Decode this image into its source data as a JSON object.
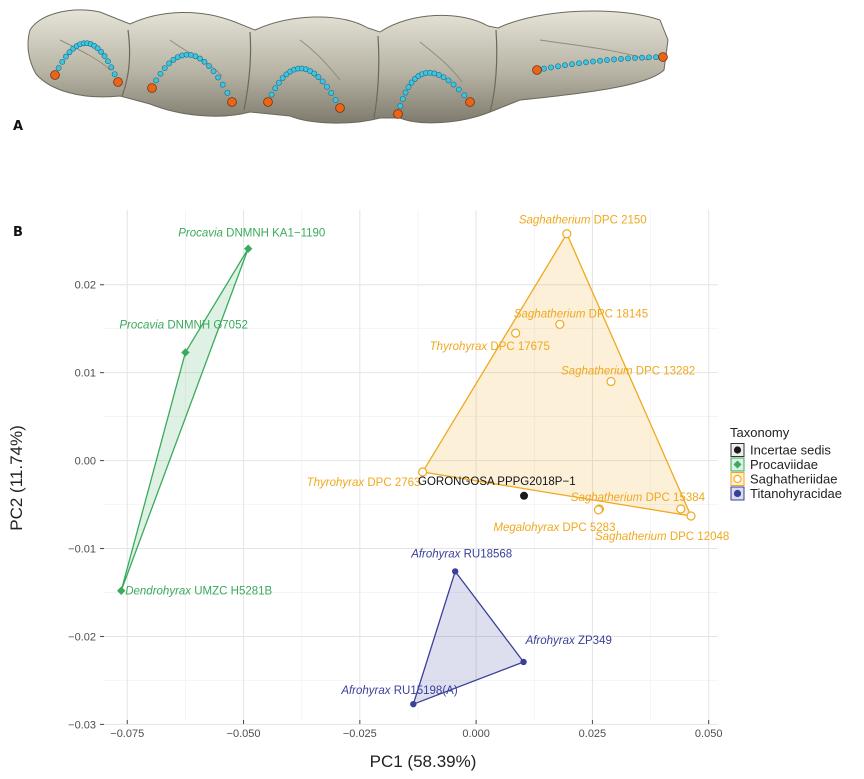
{
  "panel_a": {
    "letter": "A"
  },
  "panel_b": {
    "letter": "B"
  },
  "chart_data": {
    "type": "scatter",
    "xlabel": "PC1 (58.39%)",
    "ylabel": "PC2 (11.74%)",
    "xlim": [
      -0.08,
      0.052
    ],
    "ylim": [
      -0.0295,
      0.0285
    ],
    "xticks": [
      -0.075,
      -0.05,
      -0.025,
      0.0,
      0.025,
      0.05
    ],
    "xtick_labels": [
      "−0.075",
      "−0.050",
      "−0.025",
      "0.000",
      "0.025",
      "0.050"
    ],
    "yticks": [
      -0.03,
      -0.02,
      -0.01,
      0.0,
      0.01,
      0.02
    ],
    "ytick_labels": [
      "−0.03",
      "−0.02",
      "−0.01",
      "0.00",
      "0.01",
      "0.02"
    ],
    "grid": true,
    "legend": {
      "title": "Taxonomy",
      "placement": "right",
      "entries": [
        "Incertae sedis",
        "Procaviidae",
        "Saghatheriidae",
        "Titanohyracidae"
      ]
    },
    "colors": {
      "Incertae sedis": "#1a1a1a",
      "Procaviidae": "#3aaa5c",
      "Saghatheriidae": "#f0a81e",
      "Titanohyracidae": "#3a3f9a"
    },
    "series": [
      {
        "name": "Procaviidae",
        "marker": "diamond",
        "hull": [
          0,
          1,
          2
        ],
        "points": [
          {
            "x": -0.049,
            "y": 0.0241,
            "genus": "Procavia",
            "specimen": "DNMNH KA1−1190"
          },
          {
            "x": -0.0625,
            "y": 0.0123,
            "genus": "Procavia",
            "specimen": "DNMNH G7052"
          },
          {
            "x": -0.0763,
            "y": -0.0148,
            "genus": "Dendrohyrax",
            "specimen": "UMZC H5281B"
          }
        ]
      },
      {
        "name": "Saghatheriidae",
        "marker": "open-circle",
        "hull": [
          0,
          1,
          8
        ],
        "points": [
          {
            "x": 0.0195,
            "y": 0.0258,
            "genus": "Saghatherium",
            "specimen": "DPC 2150"
          },
          {
            "x": -0.0115,
            "y": -0.0013,
            "genus": "Thyrohyrax",
            "specimen": "DPC 2763"
          },
          {
            "x": 0.018,
            "y": 0.0155,
            "genus": "Saghatherium",
            "specimen": "DPC 18145"
          },
          {
            "x": 0.0085,
            "y": 0.0145,
            "genus": "Thyrohyrax",
            "specimen": "DPC 17675"
          },
          {
            "x": 0.029,
            "y": 0.009,
            "genus": "Saghatherium",
            "specimen": "DPC 13282"
          },
          {
            "x": 0.0265,
            "y": -0.0055,
            "genus": "Megalohyrax",
            "specimen": "DPC 5283"
          },
          {
            "x": 0.044,
            "y": -0.0055,
            "genus": "Saghatherium",
            "specimen": "DPC 15384"
          },
          {
            "x": 0.0263,
            "y": -0.0056,
            "genus": "",
            "specimen": ""
          },
          {
            "x": 0.0462,
            "y": -0.0063,
            "genus": "Saghatherium",
            "specimen": "DPC 12048"
          }
        ]
      },
      {
        "name": "Titanohyracidae",
        "marker": "circle",
        "hull": [
          0,
          1,
          2
        ],
        "points": [
          {
            "x": -0.0045,
            "y": -0.0126,
            "genus": "Afrohyrax",
            "specimen": "RU18568"
          },
          {
            "x": 0.0102,
            "y": -0.0229,
            "genus": "Afrohyrax",
            "specimen": "ZP349"
          },
          {
            "x": -0.0135,
            "y": -0.0277,
            "genus": "Afrohyrax",
            "specimen": "RU15198(A)"
          }
        ]
      },
      {
        "name": "Incertae sedis",
        "marker": "circle",
        "hull": [],
        "points": [
          {
            "x": 0.0103,
            "y": -0.004,
            "genus": "",
            "specimen": "GORONGOSA PPPG2018P−1"
          }
        ]
      }
    ]
  }
}
